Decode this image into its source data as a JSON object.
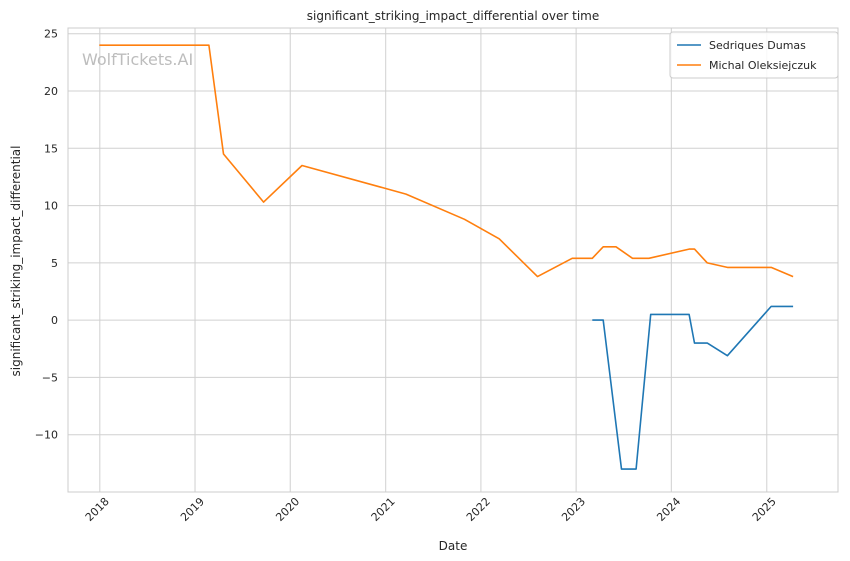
{
  "chart_data": {
    "type": "line",
    "title": "significant_striking_impact_differential over time",
    "xlabel": "Date",
    "ylabel": "significant_striking_impact_differential",
    "x_type": "date",
    "xlim": [
      "2017-09-01",
      "2025-10-01"
    ],
    "ylim": [
      -15,
      25.5
    ],
    "x_ticks": [
      "2018",
      "2019",
      "2020",
      "2021",
      "2022",
      "2023",
      "2024",
      "2025"
    ],
    "y_ticks": [
      -10,
      -5,
      0,
      5,
      10,
      15,
      20,
      25
    ],
    "y_tick_labels": [
      "−10",
      "−5",
      "0",
      "5",
      "10",
      "15",
      "20",
      "25"
    ],
    "grid": true,
    "legend_position": "top-right",
    "watermark": "WolfTickets.AI",
    "series": [
      {
        "name": "Sedriques Dumas",
        "color": "#1f77b4",
        "points": [
          [
            "2023-03-04",
            0.0
          ],
          [
            "2023-04-15",
            0.0
          ],
          [
            "2023-06-24",
            -13.0
          ],
          [
            "2023-08-19",
            -13.0
          ],
          [
            "2023-10-14",
            0.5
          ],
          [
            "2024-03-09",
            0.5
          ],
          [
            "2024-03-30",
            -2.0
          ],
          [
            "2024-05-18",
            -2.0
          ],
          [
            "2024-08-03",
            -3.1
          ],
          [
            "2025-01-18",
            1.2
          ],
          [
            "2025-04-12",
            1.2
          ]
        ]
      },
      {
        "name": "Michal Oleksiejczuk",
        "color": "#ff7f0e",
        "points": [
          [
            "2017-12-30",
            24.0
          ],
          [
            "2019-02-23",
            24.0
          ],
          [
            "2019-04-20",
            14.5
          ],
          [
            "2019-09-21",
            10.3
          ],
          [
            "2020-02-15",
            13.5
          ],
          [
            "2021-03-20",
            11.0
          ],
          [
            "2021-10-30",
            8.8
          ],
          [
            "2022-03-12",
            7.1
          ],
          [
            "2022-08-06",
            3.8
          ],
          [
            "2022-12-17",
            5.4
          ],
          [
            "2023-03-04",
            5.4
          ],
          [
            "2023-04-15",
            6.4
          ],
          [
            "2023-06-03",
            6.4
          ],
          [
            "2023-08-05",
            5.4
          ],
          [
            "2023-10-07",
            5.4
          ],
          [
            "2024-03-09",
            6.2
          ],
          [
            "2024-03-30",
            6.2
          ],
          [
            "2024-05-18",
            5.0
          ],
          [
            "2024-08-03",
            4.6
          ],
          [
            "2025-01-18",
            4.6
          ],
          [
            "2025-04-12",
            3.8
          ]
        ]
      }
    ]
  }
}
